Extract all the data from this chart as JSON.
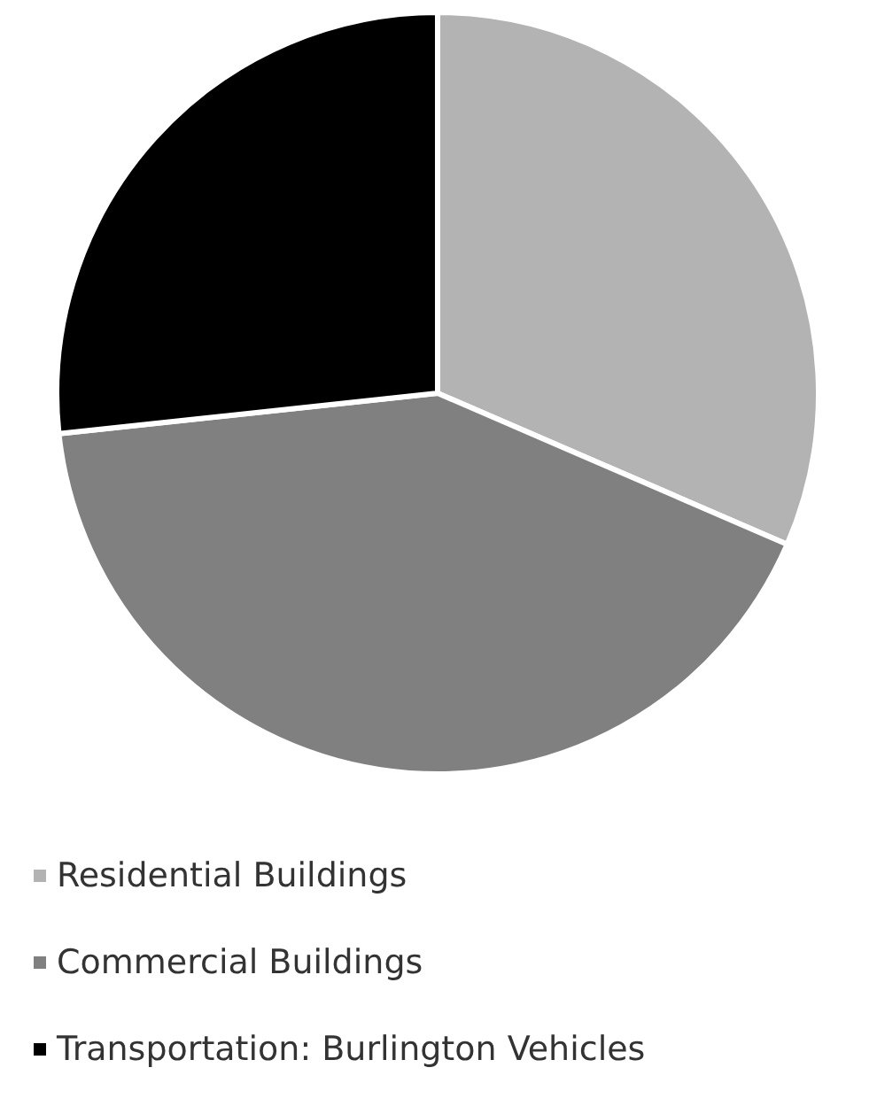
{
  "chart_data": {
    "type": "pie",
    "categories": [
      "Residential Buildings",
      "Commercial Buildings",
      "Transportation: Burlington Vehicles"
    ],
    "values": [
      31.5,
      41.8,
      26.7
    ],
    "colors": [
      "#b3b3b3",
      "#808080",
      "#000000"
    ],
    "legend": "bottom"
  }
}
